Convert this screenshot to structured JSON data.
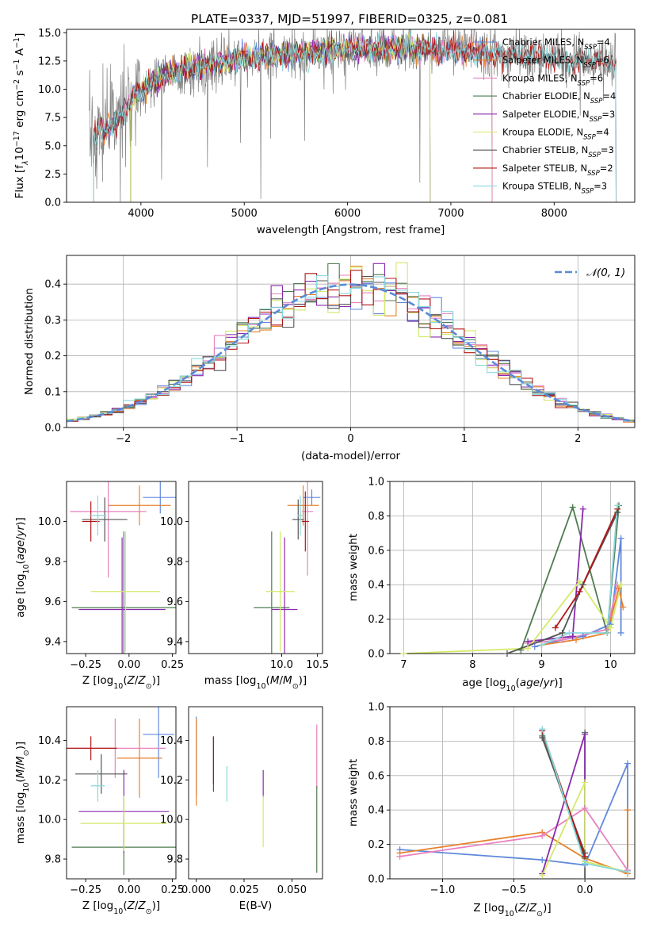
{
  "title": "PLATE=0337, MJD=51997, FIBERID=0325, z=0.081",
  "colors": {
    "Chabrier MILES": "#6088dc",
    "Salpeter MILES": "#e6822e",
    "Kroupa MILES": "#e882bf",
    "Chabrier ELODIE": "#4e7c50",
    "Salpeter ELODIE": "#8a2aad",
    "Kroupa ELODIE": "#d4ea6a",
    "Chabrier STELIB": "#555555",
    "Salpeter STELIB": "#b01818",
    "Kroupa STELIB": "#8ad8dc",
    "data": "#808080",
    "normal": "#5a8ad6"
  },
  "chart_data": [
    {
      "id": "spectrum",
      "type": "line",
      "xlabel": "wavelength [Angstrom, rest frame]",
      "ylabel": "Flux [f",
      "xlim": [
        3280,
        8780
      ],
      "ylim": [
        0,
        15.3
      ],
      "xticks": [
        4000,
        5000,
        6000,
        7000,
        8000
      ],
      "yticks": [
        0.0,
        2.5,
        5.0,
        7.5,
        10.0,
        12.5,
        15.0
      ],
      "legend": "right",
      "series": [
        {
          "name": "Chabrier MILES",
          "label_main": "Chabrier MILES, N",
          "label_end": "=4"
        },
        {
          "name": "Salpeter MILES",
          "label_main": "Salpeter MILES, N",
          "label_end": "=6"
        },
        {
          "name": "Kroupa MILES",
          "label_main": "Kroupa MILES, N",
          "label_end": "=6"
        },
        {
          "name": "Chabrier ELODIE",
          "label_main": "Chabrier ELODIE, N",
          "label_end": "=4"
        },
        {
          "name": "Salpeter ELODIE",
          "label_main": "Salpeter ELODIE, N",
          "label_end": "=3"
        },
        {
          "name": "Kroupa ELODIE",
          "label_main": "Kroupa ELODIE, N",
          "label_end": "=4"
        },
        {
          "name": "Chabrier STELIB",
          "label_main": "Chabrier STELIB, N",
          "label_end": "=3"
        },
        {
          "name": "Salpeter STELIB",
          "label_main": "Salpeter STELIB, N",
          "label_end": "=2"
        },
        {
          "name": "Kroupa STELIB",
          "label_main": "Kroupa STELIB, N",
          "label_end": "=3"
        }
      ],
      "continuum": [
        [
          3500,
          5.5
        ],
        [
          3650,
          6.5
        ],
        [
          3800,
          7.5
        ],
        [
          3950,
          9.5
        ],
        [
          4100,
          10.5
        ],
        [
          4300,
          11.5
        ],
        [
          4600,
          12.0
        ],
        [
          4900,
          12.6
        ],
        [
          5200,
          12.9
        ],
        [
          5500,
          13.1
        ],
        [
          5800,
          13.4
        ],
        [
          6100,
          13.5
        ],
        [
          6400,
          13.6
        ],
        [
          6700,
          13.6
        ],
        [
          7000,
          13.5
        ],
        [
          7300,
          13.3
        ],
        [
          7600,
          13.0
        ],
        [
          7900,
          12.8
        ],
        [
          8200,
          12.6
        ],
        [
          8500,
          12.4
        ]
      ],
      "model_ranges": {
        "Chabrier MILES": [
          3540,
          7400
        ],
        "Salpeter MILES": [
          3540,
          7400
        ],
        "Kroupa MILES": [
          3540,
          7400
        ],
        "Chabrier ELODIE": [
          3900,
          6800
        ],
        "Salpeter ELODIE": [
          3900,
          6800
        ],
        "Kroupa ELODIE": [
          3900,
          6800
        ],
        "Chabrier STELIB": [
          3540,
          8600
        ],
        "Salpeter STELIB": [
          3540,
          8600
        ],
        "Kroupa STELIB": [
          3540,
          8600
        ]
      }
    },
    {
      "id": "residuals",
      "type": "histogram",
      "xlabel": "(data-model)/error",
      "ylabel": "Normed distribution",
      "xlim": [
        -2.5,
        2.5
      ],
      "ylim": [
        0,
        0.48
      ],
      "xticks": [
        -2,
        -1,
        0,
        1,
        2
      ],
      "yticks": [
        0.0,
        0.1,
        0.2,
        0.3,
        0.4
      ],
      "bin_width": 0.1,
      "grid": true,
      "legend": "top-right",
      "reference": {
        "label": "𝒩(0, 1)",
        "mean": 0,
        "sigma": 1
      }
    },
    {
      "id": "age-vs-Z",
      "type": "scatter",
      "xlabel": "Z [log10(Z/Z☉)]",
      "ylabel": "age [log10(age/yr)]",
      "xlim": [
        -0.36,
        0.27
      ],
      "ylim": [
        9.34,
        10.2
      ],
      "xticks": [
        -0.25,
        0.0,
        0.25
      ],
      "yticks": [
        9.4,
        9.6,
        9.8,
        10.0
      ],
      "points": [
        {
          "name": "Chabrier MILES",
          "x": 0.18,
          "y": 10.12,
          "xe": 0.1,
          "ye": 0.08
        },
        {
          "name": "Salpeter MILES",
          "x": 0.06,
          "y": 10.08,
          "xe": 0.18,
          "ye": 0.1
        },
        {
          "name": "Kroupa MILES",
          "x": -0.12,
          "y": 10.05,
          "xe": 0.22,
          "ye": 0.33
        },
        {
          "name": "Chabrier ELODIE",
          "x": -0.03,
          "y": 9.57,
          "xe": 0.3,
          "ye": 0.38
        },
        {
          "name": "Salpeter ELODIE",
          "x": -0.04,
          "y": 9.56,
          "xe": 0.25,
          "ye": 0.36
        },
        {
          "name": "Kroupa ELODIE",
          "x": -0.02,
          "y": 9.65,
          "xe": 0.2,
          "ye": 0.3
        },
        {
          "name": "Chabrier STELIB",
          "x": -0.14,
          "y": 10.01,
          "xe": 0.13,
          "ye": 0.11
        },
        {
          "name": "Salpeter STELIB",
          "x": -0.22,
          "y": 10.0,
          "xe": 0.05,
          "ye": 0.1
        },
        {
          "name": "Kroupa STELIB",
          "x": -0.18,
          "y": 10.03,
          "xe": 0.05,
          "ye": 0.1
        }
      ]
    },
    {
      "id": "age-vs-mass",
      "type": "scatter",
      "xlabel": "mass [log10(M/M☉)]",
      "xlim": [
        8.7,
        10.57
      ],
      "ylim": [
        9.34,
        10.2
      ],
      "xticks": [
        10.0,
        10.5
      ],
      "yticks": [
        9.4,
        9.6,
        9.8,
        10.0
      ],
      "points": [
        {
          "name": "Chabrier MILES",
          "x": 10.42,
          "y": 10.12,
          "xe": 0.12,
          "ye": 0.04
        },
        {
          "name": "Salpeter MILES",
          "x": 10.3,
          "y": 10.08,
          "xe": 0.22,
          "ye": 0.1
        },
        {
          "name": "Kroupa MILES",
          "x": 10.36,
          "y": 10.05,
          "xe": 0.08,
          "ye": 0.32
        },
        {
          "name": "Chabrier ELODIE",
          "x": 9.86,
          "y": 9.57,
          "xe": 0.25,
          "ye": 0.38
        },
        {
          "name": "Salpeter ELODIE",
          "x": 10.04,
          "y": 9.56,
          "xe": 0.18,
          "ye": 0.36
        },
        {
          "name": "Kroupa ELODIE",
          "x": 9.98,
          "y": 9.65,
          "xe": 0.2,
          "ye": 0.3
        },
        {
          "name": "Chabrier STELIB",
          "x": 10.23,
          "y": 10.01,
          "xe": 0.08,
          "ye": 0.1
        },
        {
          "name": "Salpeter STELIB",
          "x": 10.33,
          "y": 10.0,
          "xe": 0.05,
          "ye": 0.15
        },
        {
          "name": "Kroupa STELIB",
          "x": 10.26,
          "y": 10.03,
          "xe": 0.04,
          "ye": 0.1
        }
      ]
    },
    {
      "id": "weight-vs-age",
      "type": "line",
      "xlabel": "age [log10(age/yr)]",
      "ylabel": "mass weight",
      "xlim": [
        6.8,
        10.35
      ],
      "ylim": [
        0,
        1.0
      ],
      "xticks": [
        7,
        8,
        9,
        10
      ],
      "yticks": [
        0.0,
        0.2,
        0.4,
        0.6,
        0.8,
        1.0
      ],
      "grid": true,
      "series": [
        {
          "name": "Chabrier MILES",
          "points": [
            [
              8.9,
              0.04
            ],
            [
              9.3,
              0.08
            ],
            [
              9.6,
              0.1
            ],
            [
              10.0,
              0.17
            ],
            [
              10.15,
              0.67
            ],
            [
              10.15,
              0.12
            ]
          ]
        },
        {
          "name": "Salpeter MILES",
          "points": [
            [
              9.0,
              0.05
            ],
            [
              9.5,
              0.08
            ],
            [
              9.95,
              0.12
            ],
            [
              10.12,
              0.38
            ],
            [
              10.18,
              0.27
            ]
          ]
        },
        {
          "name": "Kroupa MILES",
          "points": [
            [
              8.8,
              0.06
            ],
            [
              9.3,
              0.08
            ],
            [
              9.95,
              0.14
            ],
            [
              10.1,
              0.4
            ]
          ]
        },
        {
          "name": "Chabrier ELODIE",
          "points": [
            [
              8.7,
              0.02
            ],
            [
              9.45,
              0.85
            ],
            [
              9.95,
              0.12
            ],
            [
              10.12,
              0.86
            ]
          ]
        },
        {
          "name": "Salpeter ELODIE",
          "points": [
            [
              8.8,
              0.07
            ],
            [
              9.45,
              0.1
            ],
            [
              9.6,
              0.84
            ]
          ]
        },
        {
          "name": "Kroupa ELODIE",
          "points": [
            [
              7.0,
              0.0
            ],
            [
              8.8,
              0.03
            ],
            [
              9.55,
              0.42
            ],
            [
              10.0,
              0.15
            ],
            [
              10.15,
              0.4
            ]
          ]
        },
        {
          "name": "Chabrier STELIB",
          "points": [
            [
              8.5,
              0.0
            ],
            [
              9.3,
              0.12
            ],
            [
              9.6,
              0.4
            ],
            [
              10.1,
              0.82
            ]
          ]
        },
        {
          "name": "Salpeter STELIB",
          "points": [
            [
              9.2,
              0.15
            ],
            [
              9.55,
              0.36
            ],
            [
              10.1,
              0.84
            ]
          ]
        },
        {
          "name": "Kroupa STELIB",
          "points": [
            [
              9.0,
              0.05
            ],
            [
              9.4,
              0.12
            ],
            [
              9.95,
              0.12
            ],
            [
              10.1,
              0.86
            ]
          ]
        }
      ]
    },
    {
      "id": "mass-vs-Z",
      "type": "scatter",
      "xlabel": "Z [log10(Z/Z☉)]",
      "ylabel": "mass [log10(M/M☉)]",
      "xlim": [
        -0.36,
        0.27
      ],
      "ylim": [
        9.7,
        10.57
      ],
      "xticks": [
        -0.25,
        0.0,
        0.25
      ],
      "yticks": [
        9.8,
        10.0,
        10.2,
        10.4
      ],
      "points": [
        {
          "name": "Chabrier MILES",
          "x": 0.17,
          "y": 10.43,
          "xe": 0.09,
          "ye": 0.22
        },
        {
          "name": "Salpeter MILES",
          "x": 0.06,
          "y": 10.31,
          "xe": 0.13,
          "ye": 0.2
        },
        {
          "name": "Kroupa MILES",
          "x": -0.08,
          "y": 10.36,
          "xe": 0.29,
          "ye": 0.15
        },
        {
          "name": "Chabrier ELODIE",
          "x": -0.03,
          "y": 9.86,
          "xe": 0.3,
          "ye": 0.14
        },
        {
          "name": "Salpeter ELODIE",
          "x": -0.03,
          "y": 10.04,
          "xe": 0.26,
          "ye": 0.21
        },
        {
          "name": "Kroupa ELODIE",
          "x": -0.03,
          "y": 9.98,
          "xe": 0.25,
          "ye": 0.14
        },
        {
          "name": "Chabrier STELIB",
          "x": -0.16,
          "y": 10.23,
          "xe": 0.15,
          "ye": 0.1
        },
        {
          "name": "Salpeter STELIB",
          "x": -0.22,
          "y": 10.36,
          "xe": 0.15,
          "ye": 0.06
        },
        {
          "name": "Kroupa STELIB",
          "x": -0.18,
          "y": 10.17,
          "xe": 0.04,
          "ye": 0.08
        }
      ]
    },
    {
      "id": "mass-vs-ebv",
      "type": "scatter",
      "xlabel": "E(B-V)",
      "xlim": [
        -0.004,
        0.066
      ],
      "ylim": [
        9.7,
        10.57
      ],
      "xticks": [
        0.0,
        0.025,
        0.05
      ],
      "xtick_labels": [
        "0.000",
        "0.025",
        "0.050"
      ],
      "yticks": [
        9.8,
        10.0,
        10.2,
        10.4
      ],
      "points": [
        {
          "name": "Chabrier MILES",
          "x": 0.0,
          "y": 10.32,
          "xe": 0,
          "ye": 0.2
        },
        {
          "name": "Salpeter MILES",
          "x": 0.0,
          "y": 10.29,
          "xe": 0,
          "ye": 0.22
        },
        {
          "name": "Kroupa MILES",
          "x": 0.063,
          "y": 10.32,
          "xe": 0,
          "ye": 0.16
        },
        {
          "name": "Chabrier ELODIE",
          "x": 0.063,
          "y": 9.95,
          "xe": 0,
          "ye": 0.22
        },
        {
          "name": "Salpeter ELODIE",
          "x": 0.035,
          "y": 10.18,
          "xe": 0,
          "ye": 0.07
        },
        {
          "name": "Kroupa ELODIE",
          "x": 0.035,
          "y": 9.99,
          "xe": 0,
          "ye": 0.13
        },
        {
          "name": "Chabrier STELIB",
          "x": 0.009,
          "y": 10.28,
          "xe": 0,
          "ye": 0.14
        },
        {
          "name": "Salpeter STELIB",
          "x": 0.009,
          "y": 10.3,
          "xe": 0,
          "ye": 0.12
        },
        {
          "name": "Kroupa STELIB",
          "x": 0.016,
          "y": 10.18,
          "xe": 0,
          "ye": 0.09
        }
      ]
    },
    {
      "id": "weight-vs-Z",
      "type": "line",
      "xlabel": "Z [log10(Z/Z☉)]",
      "ylabel": "mass weight",
      "xlim": [
        -1.37,
        0.35
      ],
      "ylim": [
        0,
        1.0
      ],
      "xticks": [
        -1.0,
        -0.5,
        0.0
      ],
      "xtick_labels": [
        "−1.0",
        "−0.5",
        "0.0"
      ],
      "yticks": [
        0.0,
        0.2,
        0.4,
        0.6,
        0.8,
        1.0
      ],
      "grid": true,
      "series": [
        {
          "name": "Chabrier MILES",
          "points": [
            [
              -1.3,
              0.17
            ],
            [
              -0.3,
              0.11
            ],
            [
              0.0,
              0.08
            ],
            [
              0.3,
              0.67
            ],
            [
              0.3,
              0.05
            ]
          ]
        },
        {
          "name": "Salpeter MILES",
          "points": [
            [
              -1.3,
              0.15
            ],
            [
              -0.3,
              0.27
            ],
            [
              0.0,
              0.12
            ],
            [
              0.3,
              0.03
            ],
            [
              0.3,
              0.4
            ]
          ]
        },
        {
          "name": "Kroupa MILES",
          "points": [
            [
              -1.3,
              0.13
            ],
            [
              -0.3,
              0.25
            ],
            [
              0.0,
              0.41
            ],
            [
              0.3,
              0.05
            ]
          ]
        },
        {
          "name": "Chabrier ELODIE",
          "points": [
            [
              -0.3,
              0.83
            ],
            [
              0.0,
              0.12
            ],
            [
              0.0,
              0.85
            ]
          ]
        },
        {
          "name": "Salpeter ELODIE",
          "points": [
            [
              -0.3,
              0.03
            ],
            [
              0.0,
              0.84
            ],
            [
              0.0,
              0.1
            ]
          ]
        },
        {
          "name": "Kroupa ELODIE",
          "points": [
            [
              -0.3,
              0.02
            ],
            [
              0.0,
              0.56
            ],
            [
              0.0,
              0.1
            ],
            [
              0.3,
              0.04
            ]
          ]
        },
        {
          "name": "Chabrier STELIB",
          "points": [
            [
              -0.3,
              0.82
            ],
            [
              0.0,
              0.15
            ],
            [
              0.0,
              0.0
            ]
          ]
        },
        {
          "name": "Salpeter STELIB",
          "points": [
            [
              -0.3,
              0.86
            ],
            [
              0.0,
              0.13
            ]
          ]
        },
        {
          "name": "Kroupa STELIB",
          "points": [
            [
              -0.3,
              0.87
            ],
            [
              0.0,
              0.09
            ],
            [
              0.3,
              0.04
            ]
          ]
        }
      ]
    }
  ]
}
